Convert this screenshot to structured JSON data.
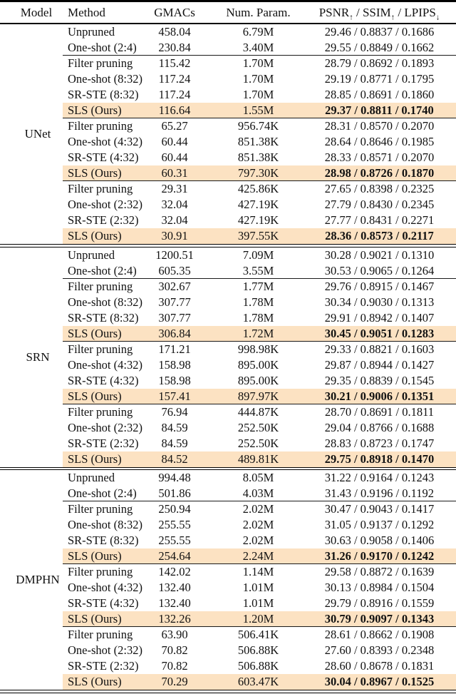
{
  "table": {
    "highlight_color": "#fce2c2",
    "columns": [
      "Model",
      "Method",
      "GMACs",
      "Num. Param."
    ],
    "metrics_header": {
      "psnr": "PSNR",
      "ssim": "SSIM",
      "lpips": "LPIPS",
      "up": "↑",
      "down": "↓",
      "sep": " / "
    },
    "sections": [
      {
        "model": "UNet",
        "groups": [
          {
            "rows": [
              {
                "method": "Unpruned",
                "gmacs": "458.04",
                "params": "6.79M",
                "metrics": "29.46 / 0.8837 / 0.1686",
                "highlight": false,
                "bold": false
              },
              {
                "method": "One-shot (2:4)",
                "gmacs": "230.84",
                "params": "3.40M",
                "metrics": "29.55 / 0.8849 / 0.1662",
                "highlight": false,
                "bold": false
              }
            ]
          },
          {
            "rows": [
              {
                "method": "Filter pruning",
                "gmacs": "115.42",
                "params": "1.70M",
                "metrics": "28.79 / 0.8692 / 0.1893",
                "highlight": false,
                "bold": false
              },
              {
                "method": "One-shot (8:32)",
                "gmacs": "117.24",
                "params": "1.70M",
                "metrics": "29.19 / 0.8771 / 0.1795",
                "highlight": false,
                "bold": false
              },
              {
                "method": "SR-STE (8:32)",
                "gmacs": "117.24",
                "params": "1.70M",
                "metrics": "28.85 / 0.8691 / 0.1860",
                "highlight": false,
                "bold": false
              },
              {
                "method": "SLS (Ours)",
                "gmacs": "116.64",
                "params": "1.55M",
                "metrics": "29.37 / 0.8811 / 0.1740",
                "highlight": true,
                "bold": true
              }
            ]
          },
          {
            "rows": [
              {
                "method": "Filter pruning",
                "gmacs": "65.27",
                "params": "956.74K",
                "metrics": "28.31 / 0.8570 / 0.2070",
                "highlight": false,
                "bold": false
              },
              {
                "method": "One-shot (4:32)",
                "gmacs": "60.44",
                "params": "851.38K",
                "metrics": "28.64 / 0.8646 / 0.1985",
                "highlight": false,
                "bold": false
              },
              {
                "method": "SR-STE (4:32)",
                "gmacs": "60.44",
                "params": "851.38K",
                "metrics": "28.33 / 0.8571 / 0.2070",
                "highlight": false,
                "bold": false
              },
              {
                "method": "SLS (Ours)",
                "gmacs": "60.31",
                "params": "797.30K",
                "metrics": "28.98 / 0.8726 / 0.1870",
                "highlight": true,
                "bold": true
              }
            ]
          },
          {
            "rows": [
              {
                "method": "Filter pruning",
                "gmacs": "29.31",
                "params": "425.86K",
                "metrics": "27.65 / 0.8398 / 0.2325",
                "highlight": false,
                "bold": false
              },
              {
                "method": "One-shot (2:32)",
                "gmacs": "32.04",
                "params": "427.19K",
                "metrics": "27.79 / 0.8430 / 0.2345",
                "highlight": false,
                "bold": false
              },
              {
                "method": "SR-STE (2:32)",
                "gmacs": "32.04",
                "params": "427.19K",
                "metrics": "27.77 / 0.8431 / 0.2271",
                "highlight": false,
                "bold": false
              },
              {
                "method": "SLS (Ours)",
                "gmacs": "30.91",
                "params": "397.55K",
                "metrics": "28.36 / 0.8573 / 0.2117",
                "highlight": true,
                "bold": true
              }
            ]
          }
        ]
      },
      {
        "model": "SRN",
        "groups": [
          {
            "rows": [
              {
                "method": "Unpruned",
                "gmacs": "1200.51",
                "params": "7.09M",
                "metrics": "30.28 / 0.9021 / 0.1310",
                "highlight": false,
                "bold": false
              },
              {
                "method": "One-shot (2:4)",
                "gmacs": "605.35",
                "params": "3.55M",
                "metrics": "30.53 / 0.9065 / 0.1264",
                "highlight": false,
                "bold": false
              }
            ]
          },
          {
            "rows": [
              {
                "method": "Filter pruning",
                "gmacs": "302.67",
                "params": "1.77M",
                "metrics": "29.76 / 0.8915 / 0.1467",
                "highlight": false,
                "bold": false
              },
              {
                "method": "One-shot (8:32)",
                "gmacs": "307.77",
                "params": "1.78M",
                "metrics": "30.34 / 0.9030 / 0.1313",
                "highlight": false,
                "bold": false
              },
              {
                "method": "SR-STE (8:32)",
                "gmacs": "307.77",
                "params": "1.78M",
                "metrics": "29.91 / 0.8942 / 0.1407",
                "highlight": false,
                "bold": false
              },
              {
                "method": "SLS (Ours)",
                "gmacs": "306.84",
                "params": "1.72M",
                "metrics": "30.45 / 0.9051 / 0.1283",
                "highlight": true,
                "bold": true
              }
            ]
          },
          {
            "rows": [
              {
                "method": "Filter pruning",
                "gmacs": "171.21",
                "params": "998.98K",
                "metrics": "29.33 / 0.8821 / 0.1603",
                "highlight": false,
                "bold": false
              },
              {
                "method": "One-shot (4:32)",
                "gmacs": "158.98",
                "params": "895.00K",
                "metrics": "29.87 / 0.8944 / 0.1427",
                "highlight": false,
                "bold": false
              },
              {
                "method": "SR-STE (4:32)",
                "gmacs": "158.98",
                "params": "895.00K",
                "metrics": "29.35 / 0.8839 / 0.1545",
                "highlight": false,
                "bold": false
              },
              {
                "method": "SLS (Ours)",
                "gmacs": "157.41",
                "params": "897.97K",
                "metrics": "30.21 / 0.9006 / 0.1351",
                "highlight": true,
                "bold": true
              }
            ]
          },
          {
            "rows": [
              {
                "method": "Filter pruning",
                "gmacs": "76.94",
                "params": "444.87K",
                "metrics": "28.70 / 0.8691 / 0.1811",
                "highlight": false,
                "bold": false
              },
              {
                "method": "One-shot (2:32)",
                "gmacs": "84.59",
                "params": "252.50K",
                "metrics": "29.04 / 0.8766 / 0.1688",
                "highlight": false,
                "bold": false
              },
              {
                "method": "SR-STE (2:32)",
                "gmacs": "84.59",
                "params": "252.50K",
                "metrics": "28.83 / 0.8723 / 0.1747",
                "highlight": false,
                "bold": false
              },
              {
                "method": "SLS (Ours)",
                "gmacs": "84.52",
                "params": "489.81K",
                "metrics": "29.75 / 0.8918 / 0.1470",
                "highlight": true,
                "bold": true
              }
            ]
          }
        ]
      },
      {
        "model": "DMPHN",
        "groups": [
          {
            "rows": [
              {
                "method": "Unpruned",
                "gmacs": "994.48",
                "params": "8.05M",
                "metrics": "31.22 / 0.9164 / 0.1243",
                "highlight": false,
                "bold": false
              },
              {
                "method": "One-shot (2:4)",
                "gmacs": "501.86",
                "params": "4.03M",
                "metrics": "31.43 / 0.9196 / 0.1192",
                "highlight": false,
                "bold": false
              }
            ]
          },
          {
            "rows": [
              {
                "method": "Filter pruning",
                "gmacs": "250.94",
                "params": "2.02M",
                "metrics": "30.47 / 0.9043 / 0.1417",
                "highlight": false,
                "bold": false
              },
              {
                "method": "One-shot (8:32)",
                "gmacs": "255.55",
                "params": "2.02M",
                "metrics": "31.05 / 0.9137 / 0.1292",
                "highlight": false,
                "bold": false
              },
              {
                "method": "SR-STE (8:32)",
                "gmacs": "255.55",
                "params": "2.02M",
                "metrics": "30.63 / 0.9058 / 0.1406",
                "highlight": false,
                "bold": false
              },
              {
                "method": "SLS (Ours)",
                "gmacs": "254.64",
                "params": "2.24M",
                "metrics": "31.26 / 0.9170 / 0.1242",
                "highlight": true,
                "bold": true
              }
            ]
          },
          {
            "rows": [
              {
                "method": "Filter pruning",
                "gmacs": "142.02",
                "params": "1.14M",
                "metrics": "29.58 / 0.8872 / 0.1639",
                "highlight": false,
                "bold": false
              },
              {
                "method": "One-shot (4:32)",
                "gmacs": "132.40",
                "params": "1.01M",
                "metrics": "30.13 / 0.8984 / 0.1504",
                "highlight": false,
                "bold": false
              },
              {
                "method": "SR-STE (4:32)",
                "gmacs": "132.40",
                "params": "1.01M",
                "metrics": "29.79 / 0.8916 / 0.1559",
                "highlight": false,
                "bold": false
              },
              {
                "method": "SLS (Ours)",
                "gmacs": "132.26",
                "params": "1.20M",
                "metrics": "30.79 / 0.9097 / 0.1343",
                "highlight": true,
                "bold": true
              }
            ]
          },
          {
            "rows": [
              {
                "method": "Filter pruning",
                "gmacs": "63.90",
                "params": "506.41K",
                "metrics": "28.61 / 0.8662 / 0.1908",
                "highlight": false,
                "bold": false
              },
              {
                "method": "One-shot (2:32)",
                "gmacs": "70.82",
                "params": "506.88K",
                "metrics": "27.60 / 0.8393 / 0.2348",
                "highlight": false,
                "bold": false
              },
              {
                "method": "SR-STE (2:32)",
                "gmacs": "70.82",
                "params": "506.88K",
                "metrics": "28.60 / 0.8678 / 0.1831",
                "highlight": false,
                "bold": false
              },
              {
                "method": "SLS (Ours)",
                "gmacs": "70.29",
                "params": "603.47K",
                "metrics": "30.04 / 0.8967 / 0.1525",
                "highlight": true,
                "bold": true
              }
            ]
          }
        ]
      }
    ]
  }
}
